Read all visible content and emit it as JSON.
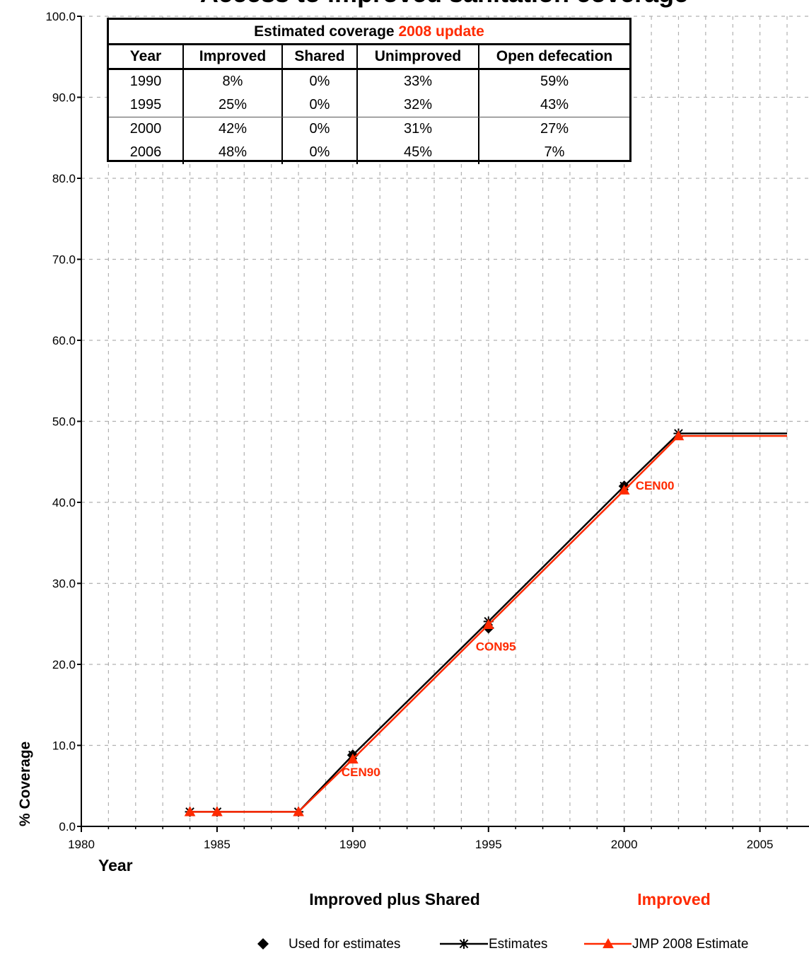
{
  "chart_data": {
    "type": "line",
    "title": "Access to improved sanitation coverage",
    "ylabel": "% Coverage",
    "xlabel": "Year",
    "xlim": [
      1980,
      2006
    ],
    "ylim": [
      0,
      100
    ],
    "x_ticks": [
      "1980",
      "1985",
      "1990",
      "1995",
      "2000",
      "2005"
    ],
    "y_ticks": [
      "0.0",
      "10.0",
      "20.0",
      "30.0",
      "40.0",
      "50.0",
      "60.0",
      "70.0",
      "80.0",
      "90.0",
      "100.0"
    ],
    "grid": true,
    "subtitle_left": "Improved plus Shared",
    "subtitle_right": "Improved",
    "series": [
      {
        "name": "Used for estimates",
        "marker": "diamond",
        "color": "#000000",
        "points": [
          {
            "x": 1990,
            "y": 8.8,
            "label": "CEN90"
          },
          {
            "x": 1995,
            "y": 24.5,
            "label": "CON95"
          },
          {
            "x": 2000,
            "y": 42.0,
            "label": "CEN00"
          }
        ]
      },
      {
        "name": "Estimates",
        "marker": "asterisk",
        "color": "#000000",
        "x": [
          1984,
          1985,
          1988,
          1990,
          1995,
          2000,
          2002,
          2006
        ],
        "y": [
          1.8,
          1.8,
          1.8,
          8.8,
          25.3,
          42.0,
          48.5,
          48.5
        ],
        "marked_x": [
          1984,
          1985,
          1988,
          1990,
          1995,
          2000,
          2002
        ]
      },
      {
        "name": "JMP 2008 Estimate",
        "marker": "triangle",
        "color": "#ff2a00",
        "x": [
          1984,
          1985,
          1988,
          1990,
          1995,
          2000,
          2002,
          2006
        ],
        "y": [
          1.8,
          1.8,
          1.8,
          8.3,
          24.9,
          41.5,
          48.2,
          48.2
        ],
        "marked_x": [
          1984,
          1985,
          1988,
          1990,
          1995,
          2000,
          2002
        ]
      }
    ],
    "legend": {
      "placement": "bottom",
      "items": [
        "Used for estimates",
        "Estimates",
        "JMP 2008 Estimate"
      ]
    },
    "table": {
      "title": "Estimated coverage",
      "title_accent": "2008 update",
      "columns": [
        "Year",
        "Improved",
        "Shared",
        "Unimproved",
        "Open defecation"
      ],
      "rows": [
        [
          "1990",
          "8%",
          "0%",
          "33%",
          "59%"
        ],
        [
          "1995",
          "25%",
          "0%",
          "32%",
          "43%"
        ],
        [
          "2000",
          "42%",
          "0%",
          "31%",
          "27%"
        ],
        [
          "2006",
          "48%",
          "0%",
          "45%",
          "7%"
        ]
      ]
    },
    "colors": {
      "black": "#000000",
      "accent": "#ff2a00",
      "grid": "#b0b0b0"
    }
  }
}
